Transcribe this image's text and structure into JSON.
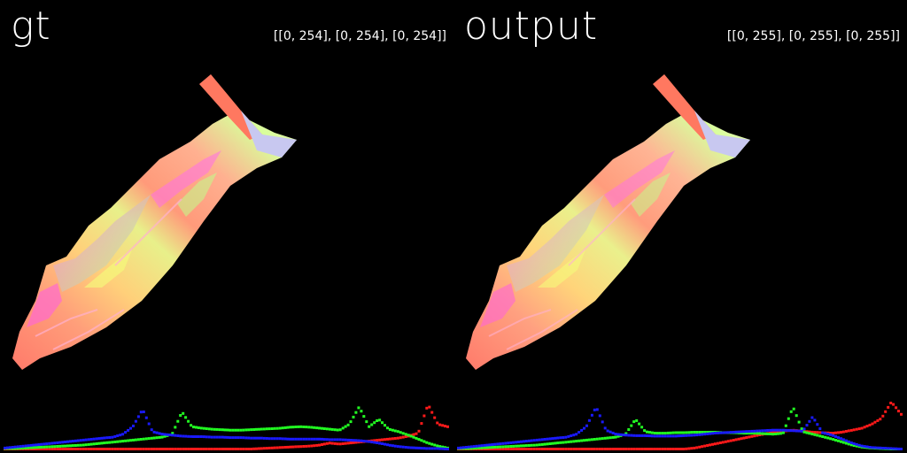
{
  "panels": [
    {
      "title": "gt",
      "range_text": "[[0, 254], [0, 254], [0, 254]]",
      "histogram": {
        "blue": [
          0.02,
          0.04,
          0.06,
          0.08,
          0.1,
          0.12,
          0.14,
          0.16,
          0.18,
          0.2,
          0.22,
          0.24,
          0.3,
          0.45,
          0.8,
          0.35,
          0.3,
          0.28,
          0.26,
          0.25,
          0.25,
          0.24,
          0.24,
          0.23,
          0.23,
          0.22,
          0.22,
          0.21,
          0.21,
          0.2,
          0.2,
          0.2,
          0.2,
          0.19,
          0.19,
          0.18,
          0.17,
          0.15,
          0.12,
          0.08,
          0.05,
          0.03,
          0.02,
          0.01,
          0.01,
          0.0
        ],
        "green": [
          0.01,
          0.01,
          0.02,
          0.03,
          0.04,
          0.05,
          0.06,
          0.07,
          0.08,
          0.1,
          0.12,
          0.14,
          0.16,
          0.18,
          0.2,
          0.22,
          0.24,
          0.3,
          0.75,
          0.45,
          0.42,
          0.4,
          0.39,
          0.38,
          0.38,
          0.39,
          0.4,
          0.41,
          0.42,
          0.44,
          0.45,
          0.44,
          0.42,
          0.4,
          0.38,
          0.5,
          0.85,
          0.45,
          0.6,
          0.4,
          0.35,
          0.28,
          0.2,
          0.12,
          0.06,
          0.02
        ],
        "red": [
          0.0,
          0.0,
          0.0,
          0.0,
          0.0,
          0.0,
          0.0,
          0.0,
          0.0,
          0.0,
          0.0,
          0.0,
          0.0,
          0.0,
          0.0,
          0.0,
          0.0,
          0.0,
          0.0,
          0.0,
          0.0,
          0.0,
          0.0,
          0.0,
          0.0,
          0.0,
          0.01,
          0.02,
          0.03,
          0.04,
          0.05,
          0.06,
          0.08,
          0.12,
          0.1,
          0.12,
          0.14,
          0.16,
          0.18,
          0.2,
          0.22,
          0.26,
          0.32,
          0.9,
          0.5,
          0.45
        ]
      }
    },
    {
      "title": "output",
      "range_text": "[[0, 255], [0, 255], [0, 255]]",
      "histogram": {
        "blue": [
          0.02,
          0.04,
          0.06,
          0.08,
          0.1,
          0.12,
          0.14,
          0.16,
          0.18,
          0.2,
          0.22,
          0.24,
          0.3,
          0.45,
          0.85,
          0.38,
          0.3,
          0.28,
          0.27,
          0.27,
          0.26,
          0.26,
          0.26,
          0.27,
          0.28,
          0.3,
          0.32,
          0.33,
          0.34,
          0.35,
          0.36,
          0.37,
          0.38,
          0.38,
          0.37,
          0.36,
          0.65,
          0.33,
          0.28,
          0.2,
          0.12,
          0.06,
          0.03,
          0.02,
          0.01,
          0.0
        ],
        "green": [
          0.01,
          0.01,
          0.02,
          0.03,
          0.04,
          0.05,
          0.06,
          0.07,
          0.08,
          0.1,
          0.12,
          0.14,
          0.16,
          0.18,
          0.2,
          0.22,
          0.24,
          0.3,
          0.6,
          0.35,
          0.32,
          0.32,
          0.33,
          0.33,
          0.34,
          0.34,
          0.34,
          0.33,
          0.33,
          0.32,
          0.32,
          0.31,
          0.3,
          0.32,
          0.85,
          0.35,
          0.3,
          0.25,
          0.2,
          0.14,
          0.08,
          0.04,
          0.02,
          0.01,
          0.0,
          0.0
        ],
        "red": [
          0.0,
          0.0,
          0.0,
          0.0,
          0.0,
          0.0,
          0.0,
          0.0,
          0.0,
          0.0,
          0.0,
          0.0,
          0.0,
          0.0,
          0.0,
          0.0,
          0.0,
          0.0,
          0.0,
          0.0,
          0.0,
          0.0,
          0.0,
          0.0,
          0.02,
          0.06,
          0.1,
          0.14,
          0.18,
          0.22,
          0.26,
          0.3,
          0.34,
          0.36,
          0.38,
          0.36,
          0.34,
          0.33,
          0.32,
          0.34,
          0.38,
          0.42,
          0.5,
          0.62,
          0.95,
          0.7
        ]
      }
    }
  ],
  "colors": {
    "background": "#000000",
    "text": "#ffffff",
    "blue": "#1a1aff",
    "green": "#22ff22",
    "red": "#ff1a1a"
  }
}
